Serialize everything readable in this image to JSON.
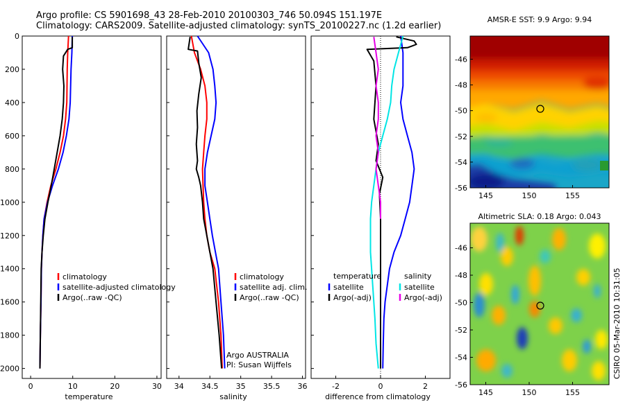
{
  "header": {
    "line1": "Argo profile: CS 5901698_43 28-Feb-2010 20100303_746 50.094S 151.197E",
    "line2": "Climatology: CARS2009. Satellite-adjusted climatology: synTS_20100227.nc (1.2d earlier)"
  },
  "chart_data": [
    {
      "type": "line",
      "xlabel": "temperature",
      "ylabel": "",
      "xlim": [
        -2,
        31
      ],
      "ylim": [
        0,
        2060
      ],
      "y_reversed": true,
      "xticks": [
        "0",
        "10",
        "20",
        "30"
      ],
      "yticks": [
        "0",
        "200",
        "400",
        "600",
        "800",
        "1000",
        "1200",
        "1400",
        "1600",
        "1800",
        "2000"
      ],
      "legend_placement": "lower-right",
      "series": [
        {
          "name": "climatology",
          "color": "#ff0000",
          "x": [
            9.0,
            8.8,
            8.7,
            8.6,
            8.3,
            7.8,
            7.0,
            6.0,
            4.8,
            3.9,
            3.2,
            2.9,
            2.7,
            2.55,
            2.45,
            2.3,
            2.2
          ],
          "y": [
            0,
            100,
            200,
            400,
            500,
            600,
            700,
            800,
            900,
            1000,
            1100,
            1200,
            1300,
            1400,
            1600,
            1800,
            2000
          ]
        },
        {
          "name": "satellite-adjusted climatology",
          "color": "#0000ff",
          "x": [
            9.9,
            9.8,
            9.6,
            9.4,
            9.1,
            8.5,
            7.7,
            6.6,
            5.2,
            4.0,
            3.2,
            2.9,
            2.7,
            2.55,
            2.45,
            2.3,
            2.2
          ],
          "y": [
            0,
            100,
            200,
            400,
            500,
            600,
            700,
            800,
            900,
            1000,
            1100,
            1200,
            1300,
            1400,
            1600,
            1800,
            2000
          ]
        },
        {
          "name": "Argo(..raw -QC)",
          "color": "#000000",
          "x": [
            9.9,
            9.9,
            8.8,
            7.8,
            7.6,
            7.9,
            7.8,
            7.5,
            7.0,
            6.3,
            5.6,
            4.9,
            4.1,
            3.4,
            3.0,
            2.7,
            2.5,
            2.4,
            2.3,
            2.2
          ],
          "y": [
            5,
            70,
            80,
            120,
            200,
            300,
            400,
            500,
            600,
            700,
            800,
            900,
            1000,
            1100,
            1200,
            1300,
            1400,
            1600,
            1800,
            2000
          ]
        }
      ]
    },
    {
      "type": "line",
      "xlabel": "salinity",
      "ylabel": "",
      "xlim": [
        33.8,
        36.05
      ],
      "ylim": [
        0,
        2060
      ],
      "y_reversed": true,
      "xticks": [
        "34",
        "34.5",
        "35",
        "35.5",
        "36"
      ],
      "legend_placement": "lower-right",
      "series": [
        {
          "name": "climatology",
          "color": "#ff0000",
          "x": [
            34.2,
            34.25,
            34.35,
            34.42,
            34.45,
            34.45,
            34.42,
            34.4,
            34.38,
            34.39,
            34.4,
            34.42,
            34.45,
            34.5,
            34.58,
            34.64,
            34.68,
            34.7
          ],
          "y": [
            0,
            100,
            200,
            300,
            400,
            500,
            600,
            700,
            800,
            900,
            1000,
            1100,
            1200,
            1300,
            1400,
            1600,
            1800,
            2000
          ]
        },
        {
          "name": "satellite adj. clim.",
          "color": "#0000ff",
          "x": [
            34.3,
            34.48,
            34.55,
            34.58,
            34.6,
            34.58,
            34.52,
            34.46,
            34.42,
            34.42,
            34.46,
            34.5,
            34.54,
            34.59,
            34.64,
            34.68,
            34.72,
            34.74
          ],
          "y": [
            0,
            100,
            200,
            300,
            400,
            500,
            600,
            700,
            800,
            900,
            1000,
            1100,
            1200,
            1300,
            1400,
            1600,
            1800,
            2000
          ]
        },
        {
          "name": "Argo(..raw -QC)",
          "color": "#000000",
          "x": [
            34.18,
            34.15,
            34.3,
            34.32,
            34.36,
            34.32,
            34.29,
            34.3,
            34.28,
            34.3,
            34.28,
            34.32,
            34.35,
            34.38,
            34.4,
            34.45,
            34.5,
            34.55,
            34.6,
            34.65,
            34.69
          ],
          "y": [
            5,
            80,
            90,
            160,
            250,
            350,
            450,
            550,
            650,
            750,
            800,
            850,
            900,
            1000,
            1100,
            1200,
            1300,
            1400,
            1600,
            1800,
            2000
          ]
        }
      ]
    },
    {
      "type": "line",
      "xlabel": "difference from climatology",
      "ylabel": "",
      "xlim": [
        -3.1,
        3.1
      ],
      "ylim": [
        0,
        2060
      ],
      "y_reversed": true,
      "xticks": [
        "-2",
        "0",
        "2"
      ],
      "zero_line": "dotted",
      "legend_placement": "lower-center",
      "legend_columns": [
        {
          "title": "temperature",
          "entries": [
            {
              "name": "satellite",
              "color": "#0000ff"
            },
            {
              "name": "Argo(-adj)",
              "color": "#000000"
            }
          ]
        },
        {
          "title": "salinity",
          "entries": [
            {
              "name": "satellite",
              "color": "#00e5e5"
            },
            {
              "name": "Argo(-adj)",
              "color": "#e600e6"
            }
          ]
        }
      ],
      "series": [
        {
          "name": "temperature satellite",
          "color": "#0000ff",
          "x": [
            0.9,
            1.0,
            1.0,
            1.0,
            0.9,
            1.0,
            1.2,
            1.4,
            1.5,
            1.4,
            1.3,
            1.1,
            0.9,
            0.6,
            0.4,
            0.3,
            0.2,
            0.15,
            0.12,
            0.1
          ],
          "y": [
            0,
            100,
            200,
            300,
            400,
            500,
            600,
            700,
            800,
            900,
            1000,
            1100,
            1200,
            1300,
            1400,
            1500,
            1600,
            1700,
            1850,
            2000
          ]
        },
        {
          "name": "temperature Argo(-adj)",
          "color": "#000000",
          "x": [
            0.7,
            1.5,
            1.6,
            1.4,
            1.2,
            -0.6,
            -0.3,
            -0.2,
            -0.3,
            -0.1,
            -0.2,
            0.1,
            -0.05,
            0.0,
            0.0,
            0.0,
            0.0,
            0.0
          ],
          "y": [
            5,
            30,
            50,
            60,
            70,
            80,
            150,
            300,
            500,
            650,
            750,
            850,
            950,
            1100,
            1300,
            1500,
            1800,
            2000
          ]
        },
        {
          "name": "salinity satellite",
          "color": "#00e5e5",
          "x": [
            1.0,
            0.8,
            0.6,
            0.5,
            0.45,
            0.3,
            0.1,
            -0.1,
            -0.2,
            -0.3,
            -0.4,
            -0.45,
            -0.45,
            -0.4,
            -0.35,
            -0.3,
            -0.25,
            -0.2,
            -0.1
          ],
          "y": [
            0,
            100,
            200,
            300,
            400,
            500,
            600,
            700,
            800,
            900,
            1000,
            1100,
            1300,
            1400,
            1500,
            1600,
            1700,
            1850,
            2000
          ]
        },
        {
          "name": "salinity Argo(-adj)",
          "color": "#e600e6",
          "x": [
            -0.3,
            -0.2,
            -0.1,
            -0.2,
            -0.1,
            -0.1,
            -0.2,
            -0.1,
            -0.2,
            -0.1,
            0.0,
            0.0
          ],
          "y": [
            5,
            100,
            200,
            300,
            400,
            500,
            600,
            700,
            800,
            900,
            1000,
            1100
          ]
        }
      ]
    },
    {
      "type": "heatmap",
      "title": "AMSR-E SST: 9.9 Argo: 9.94",
      "xticks": [
        "145",
        "150",
        "155"
      ],
      "yticks": [
        "-46",
        "-48",
        "-50",
        "-52",
        "-54",
        "-56"
      ],
      "xlim": [
        143.2,
        159.2
      ],
      "ylim": [
        -56,
        -44.2
      ],
      "marker": {
        "lon": 151.197,
        "lat": -50.094
      }
    },
    {
      "type": "heatmap",
      "title": "Altimetric SLA: 0.18 Argo: 0.043",
      "xticks": [
        "145",
        "150",
        "155"
      ],
      "yticks": [
        "-46",
        "-48",
        "-50",
        "-52",
        "-54",
        "-56"
      ],
      "xlim": [
        143.2,
        159.2
      ],
      "ylim": [
        -56,
        -44.2
      ],
      "marker": {
        "lon": 151.197,
        "lat": -50.094
      }
    }
  ],
  "footer": {
    "stamp": "CSIRO 05-Mar-2010 10:31:05",
    "source": "Argo AUSTRALIA",
    "pi": "PI: Susan Wijffels"
  }
}
